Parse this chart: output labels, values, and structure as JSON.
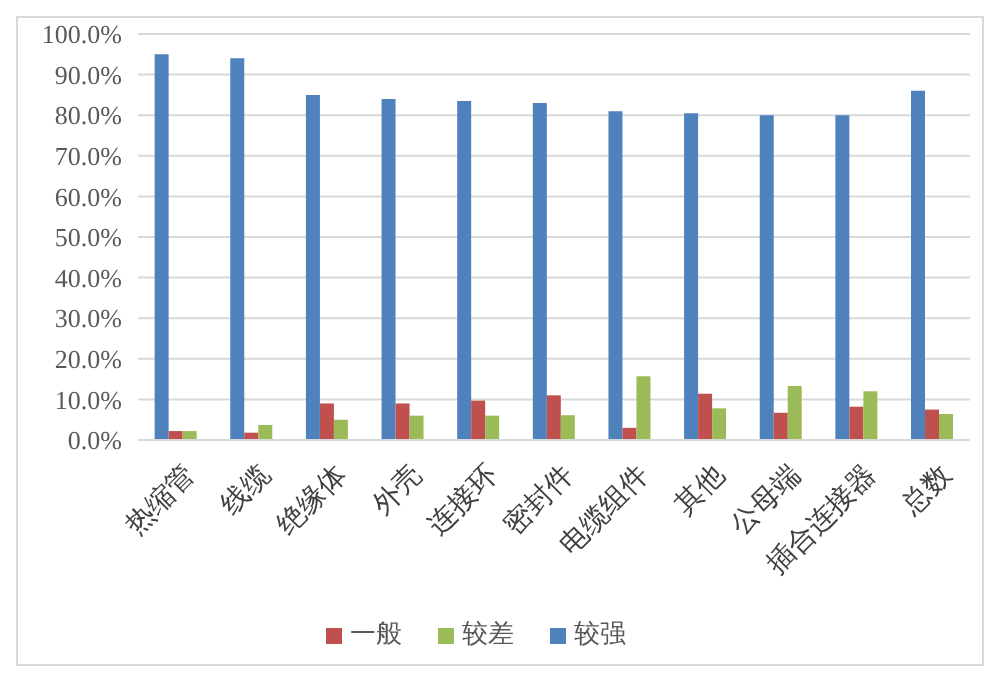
{
  "chart_data": {
    "type": "bar",
    "categories": [
      "热缩管",
      "线缆",
      "绝缘体",
      "外壳",
      "连接环",
      "密封件",
      "电缆组件",
      "其他",
      "公母端",
      "插合连接器",
      "总数"
    ],
    "series": [
      {
        "name": "较强",
        "color": "#4f81bd",
        "values": [
          95,
          94,
          85,
          84,
          83.5,
          83,
          81,
          80.5,
          80,
          80,
          86
        ]
      },
      {
        "name": "一般",
        "color": "#c0504d",
        "values": [
          2.2,
          1.8,
          9,
          9,
          9.7,
          11,
          3,
          11.4,
          6.7,
          8.2,
          7.5
        ]
      },
      {
        "name": "较差",
        "color": "#9bbb59",
        "values": [
          2.2,
          3.7,
          5,
          6,
          6,
          6.1,
          15.7,
          7.8,
          13.3,
          12,
          6.4
        ]
      }
    ],
    "ylim": [
      0,
      100
    ],
    "yticks": [
      {
        "value": 0,
        "label": "0.0%"
      },
      {
        "value": 10,
        "label": "10.0%"
      },
      {
        "value": 20,
        "label": "20.0%"
      },
      {
        "value": 30,
        "label": "30.0%"
      },
      {
        "value": 40,
        "label": "40.0%"
      },
      {
        "value": 50,
        "label": "50.0%"
      },
      {
        "value": 60,
        "label": "60.0%"
      },
      {
        "value": 70,
        "label": "70.0%"
      },
      {
        "value": 80,
        "label": "80.0%"
      },
      {
        "value": 90,
        "label": "90.0%"
      },
      {
        "value": 100,
        "label": "100.0%"
      }
    ],
    "grid": "y",
    "legend": "bottom"
  }
}
